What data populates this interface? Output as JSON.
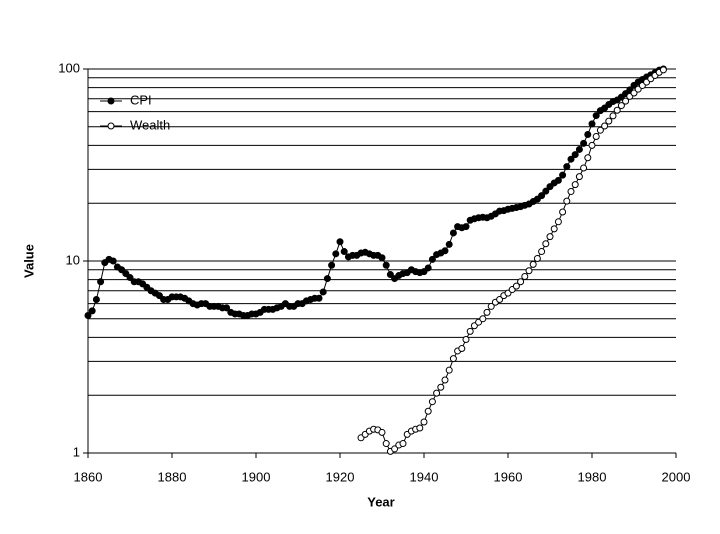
{
  "chart_data": {
    "type": "line",
    "x_label": "Year",
    "y_label": "Value",
    "x": [
      1860,
      1861,
      1862,
      1863,
      1864,
      1865,
      1866,
      1867,
      1868,
      1869,
      1870,
      1871,
      1872,
      1873,
      1874,
      1875,
      1876,
      1877,
      1878,
      1879,
      1880,
      1881,
      1882,
      1883,
      1884,
      1885,
      1886,
      1887,
      1888,
      1889,
      1890,
      1891,
      1892,
      1893,
      1894,
      1895,
      1896,
      1897,
      1898,
      1899,
      1900,
      1901,
      1902,
      1903,
      1904,
      1905,
      1906,
      1907,
      1908,
      1909,
      1910,
      1911,
      1912,
      1913,
      1914,
      1915,
      1916,
      1917,
      1918,
      1919,
      1920,
      1921,
      1922,
      1923,
      1924,
      1925,
      1926,
      1927,
      1928,
      1929,
      1930,
      1931,
      1932,
      1933,
      1934,
      1935,
      1936,
      1937,
      1938,
      1939,
      1940,
      1941,
      1942,
      1943,
      1944,
      1945,
      1946,
      1947,
      1948,
      1949,
      1950,
      1951,
      1952,
      1953,
      1954,
      1955,
      1956,
      1957,
      1958,
      1959,
      1960,
      1961,
      1962,
      1963,
      1964,
      1965,
      1966,
      1967,
      1968,
      1969,
      1970,
      1971,
      1972,
      1973,
      1974,
      1975,
      1976,
      1977,
      1978,
      1979,
      1980,
      1981,
      1982,
      1983,
      1984,
      1985,
      1986,
      1987,
      1988,
      1989,
      1990,
      1991,
      1992,
      1993,
      1994,
      1995,
      1996,
      1997
    ],
    "series": [
      {
        "name": "CPI",
        "color": "#000000",
        "marker": "filled",
        "values": [
          5.2,
          5.5,
          6.3,
          7.8,
          9.8,
          10.2,
          10.0,
          9.3,
          9.0,
          8.6,
          8.2,
          7.8,
          7.8,
          7.6,
          7.3,
          7.0,
          6.8,
          6.6,
          6.3,
          6.3,
          6.5,
          6.5,
          6.5,
          6.4,
          6.2,
          6.0,
          5.9,
          6.0,
          6.0,
          5.8,
          5.8,
          5.8,
          5.7,
          5.7,
          5.4,
          5.3,
          5.3,
          5.2,
          5.2,
          5.3,
          5.3,
          5.4,
          5.6,
          5.6,
          5.6,
          5.7,
          5.8,
          6.0,
          5.8,
          5.8,
          6.0,
          6.0,
          6.2,
          6.3,
          6.4,
          6.4,
          6.9,
          8.1,
          9.5,
          10.9,
          12.6,
          11.2,
          10.5,
          10.7,
          10.7,
          11.0,
          11.1,
          10.9,
          10.7,
          10.7,
          10.4,
          9.5,
          8.5,
          8.1,
          8.4,
          8.6,
          8.7,
          9.0,
          8.8,
          8.7,
          8.8,
          9.2,
          10.2,
          10.8,
          11.0,
          11.3,
          12.2,
          14.0,
          15.1,
          14.9,
          15.1,
          16.3,
          16.6,
          16.8,
          16.9,
          16.8,
          17.1,
          17.6,
          18.2,
          18.3,
          18.6,
          18.8,
          19.0,
          19.2,
          19.5,
          19.8,
          20.4,
          21.0,
          21.9,
          23.1,
          24.4,
          25.5,
          26.3,
          28.0,
          31.0,
          33.9,
          35.8,
          38.1,
          41.0,
          45.6,
          51.8,
          57.2,
          60.7,
          62.6,
          65.3,
          67.7,
          68.9,
          71.4,
          74.4,
          77.9,
          82.2,
          85.6,
          88.2,
          90.8,
          93.2,
          95.8,
          98.6,
          100
        ]
      },
      {
        "name": "Wealth",
        "color": "#000000",
        "marker": "hollow",
        "values": [
          null,
          null,
          null,
          null,
          null,
          null,
          null,
          null,
          null,
          null,
          null,
          null,
          null,
          null,
          null,
          null,
          null,
          null,
          null,
          null,
          null,
          null,
          null,
          null,
          null,
          null,
          null,
          null,
          null,
          null,
          null,
          null,
          null,
          null,
          null,
          null,
          null,
          null,
          null,
          null,
          null,
          null,
          null,
          null,
          null,
          null,
          null,
          null,
          null,
          null,
          null,
          null,
          null,
          null,
          null,
          null,
          null,
          null,
          null,
          null,
          null,
          null,
          null,
          null,
          null,
          1.2,
          1.25,
          1.3,
          1.33,
          1.32,
          1.28,
          1.12,
          1.02,
          1.05,
          1.1,
          1.12,
          1.25,
          1.3,
          1.33,
          1.35,
          1.45,
          1.65,
          1.85,
          2.05,
          2.2,
          2.4,
          2.7,
          3.1,
          3.4,
          3.5,
          3.9,
          4.3,
          4.6,
          4.8,
          5.0,
          5.4,
          5.8,
          6.1,
          6.3,
          6.6,
          6.8,
          7.1,
          7.4,
          7.8,
          8.3,
          8.9,
          9.6,
          10.3,
          11.2,
          12.3,
          13.4,
          14.7,
          16.0,
          18.0,
          20.5,
          23.0,
          25.0,
          27.5,
          30.5,
          34.5,
          40.0,
          44.5,
          48.0,
          50.5,
          53.5,
          57.0,
          61.0,
          64.5,
          68.0,
          72.0,
          75.0,
          78.5,
          82.0,
          85.5,
          89.0,
          92.5,
          96.0,
          99.0
        ]
      }
    ],
    "xlim": [
      1860,
      2000
    ],
    "xticks": [
      1860,
      1880,
      1900,
      1920,
      1940,
      1960,
      1980,
      2000
    ],
    "ylim": [
      1,
      100
    ],
    "yticks": [
      1,
      10,
      100
    ],
    "ylog": true,
    "yminor": [
      2,
      3,
      4,
      5,
      6,
      7,
      8,
      9,
      20,
      30,
      40,
      50,
      60,
      70,
      80,
      90
    ],
    "grid": true,
    "legend": "upper left"
  }
}
